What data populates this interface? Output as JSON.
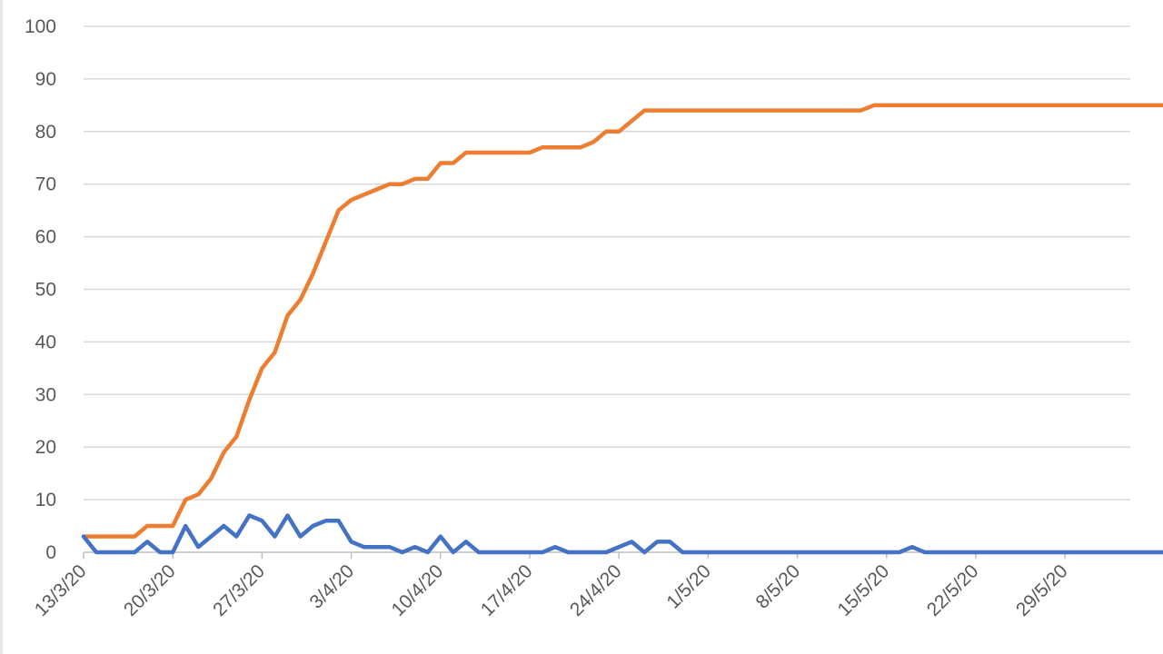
{
  "chart_data": {
    "type": "line",
    "ylim": [
      0,
      100
    ],
    "yticks": [
      0,
      10,
      20,
      30,
      40,
      50,
      60,
      70,
      80,
      90,
      100
    ],
    "xticks": [
      "13/3/20",
      "20/3/20",
      "27/3/20",
      "3/4/20",
      "10/4/20",
      "17/4/20",
      "24/4/20",
      "1/5/20",
      "8/5/20",
      "15/5/20",
      "22/5/20",
      "29/5/20"
    ],
    "grid": true,
    "legend": "none",
    "x_start": "13/3/20",
    "x_end": "1/6/20",
    "series": [
      {
        "color": "#ED7D31",
        "values": [
          3,
          3,
          3,
          3,
          3,
          5,
          5,
          5,
          10,
          11,
          14,
          19,
          22,
          29,
          35,
          38,
          45,
          48,
          53,
          59,
          65,
          67,
          68,
          69,
          70,
          70,
          71,
          71,
          74,
          74,
          76,
          76,
          76,
          76,
          76,
          76,
          77,
          77,
          77,
          77,
          78,
          80,
          80,
          82,
          84,
          84,
          84,
          84,
          84,
          84,
          84,
          84,
          84,
          84,
          84,
          84,
          84,
          84,
          84,
          84,
          84,
          84,
          85,
          85,
          85,
          85,
          85,
          85,
          85,
          85,
          85,
          85,
          85,
          85,
          85,
          85,
          85,
          85,
          85,
          85,
          85,
          85,
          85,
          85,
          85,
          85,
          85,
          86,
          86,
          86,
          86
        ]
      },
      {
        "color": "#4472C4",
        "values": [
          3,
          0,
          0,
          0,
          0,
          2,
          0,
          0,
          5,
          1,
          3,
          5,
          3,
          7,
          6,
          3,
          7,
          3,
          5,
          6,
          6,
          2,
          1,
          1,
          1,
          0,
          1,
          0,
          3,
          0,
          2,
          0,
          0,
          0,
          0,
          0,
          0,
          1,
          0,
          0,
          0,
          0,
          1,
          2,
          0,
          2,
          2,
          0,
          0,
          0,
          0,
          0,
          0,
          0,
          0,
          0,
          0,
          0,
          0,
          0,
          0,
          0,
          0,
          0,
          0,
          1,
          0,
          0,
          0,
          0,
          0,
          0,
          0,
          0,
          0,
          0,
          0,
          0,
          0,
          0,
          0,
          0,
          0,
          0,
          0,
          0,
          0,
          1,
          0,
          0,
          0
        ]
      }
    ]
  }
}
